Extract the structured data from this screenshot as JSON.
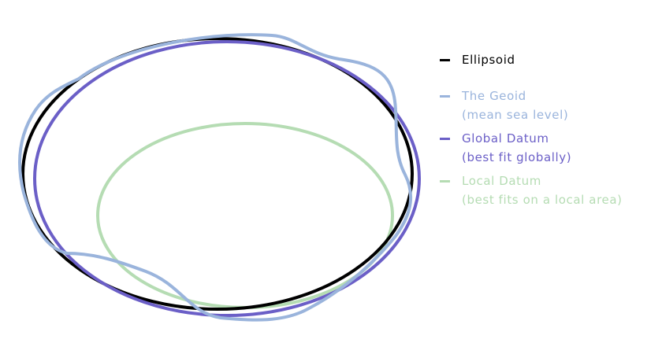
{
  "colors": {
    "ellipsoid": "#000000",
    "geoid": "#9ab4dc",
    "global": "#6b5fc7",
    "local": "#b5dcb3"
  },
  "legend": [
    {
      "key": "ellipsoid",
      "line1": "Ellipsoid",
      "line2": ""
    },
    {
      "key": "geoid",
      "line1": "The Geoid",
      "line2": "(mean sea level)"
    },
    {
      "key": "global",
      "line1": "Global Datum",
      "line2": "(best fit globally)"
    },
    {
      "key": "local",
      "line1": "Local Datum",
      "line2": "(best fits on a local area)"
    }
  ]
}
